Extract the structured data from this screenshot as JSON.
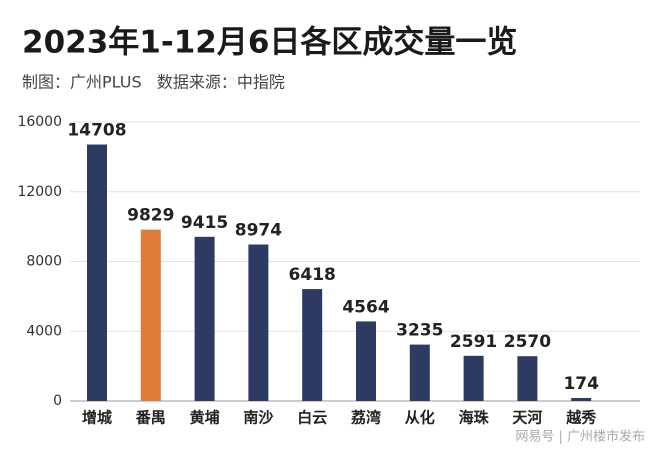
{
  "chart_data": {
    "type": "bar",
    "title": "2023年1-12月6日各区成交量一览",
    "subtitle": "制图：广州PLUS   数据来源：中指院",
    "watermark": "网易号 | 广州楼市发布",
    "categories": [
      "增城",
      "番禺",
      "黄埔",
      "南沙",
      "白云",
      "荔湾",
      "从化",
      "海珠",
      "天河",
      "越秀"
    ],
    "values": [
      14708,
      9829,
      9415,
      8974,
      6418,
      4564,
      3235,
      2591,
      2570,
      174
    ],
    "colors": [
      "#2d3a64",
      "#e07b39",
      "#2d3a64",
      "#2d3a64",
      "#2d3a64",
      "#2d3a64",
      "#2d3a64",
      "#2d3a64",
      "#2d3a64",
      "#2d3a64"
    ],
    "ylim": [
      0,
      16000
    ],
    "yticks": [
      0,
      4000,
      8000,
      12000,
      16000
    ],
    "grid": true
  }
}
